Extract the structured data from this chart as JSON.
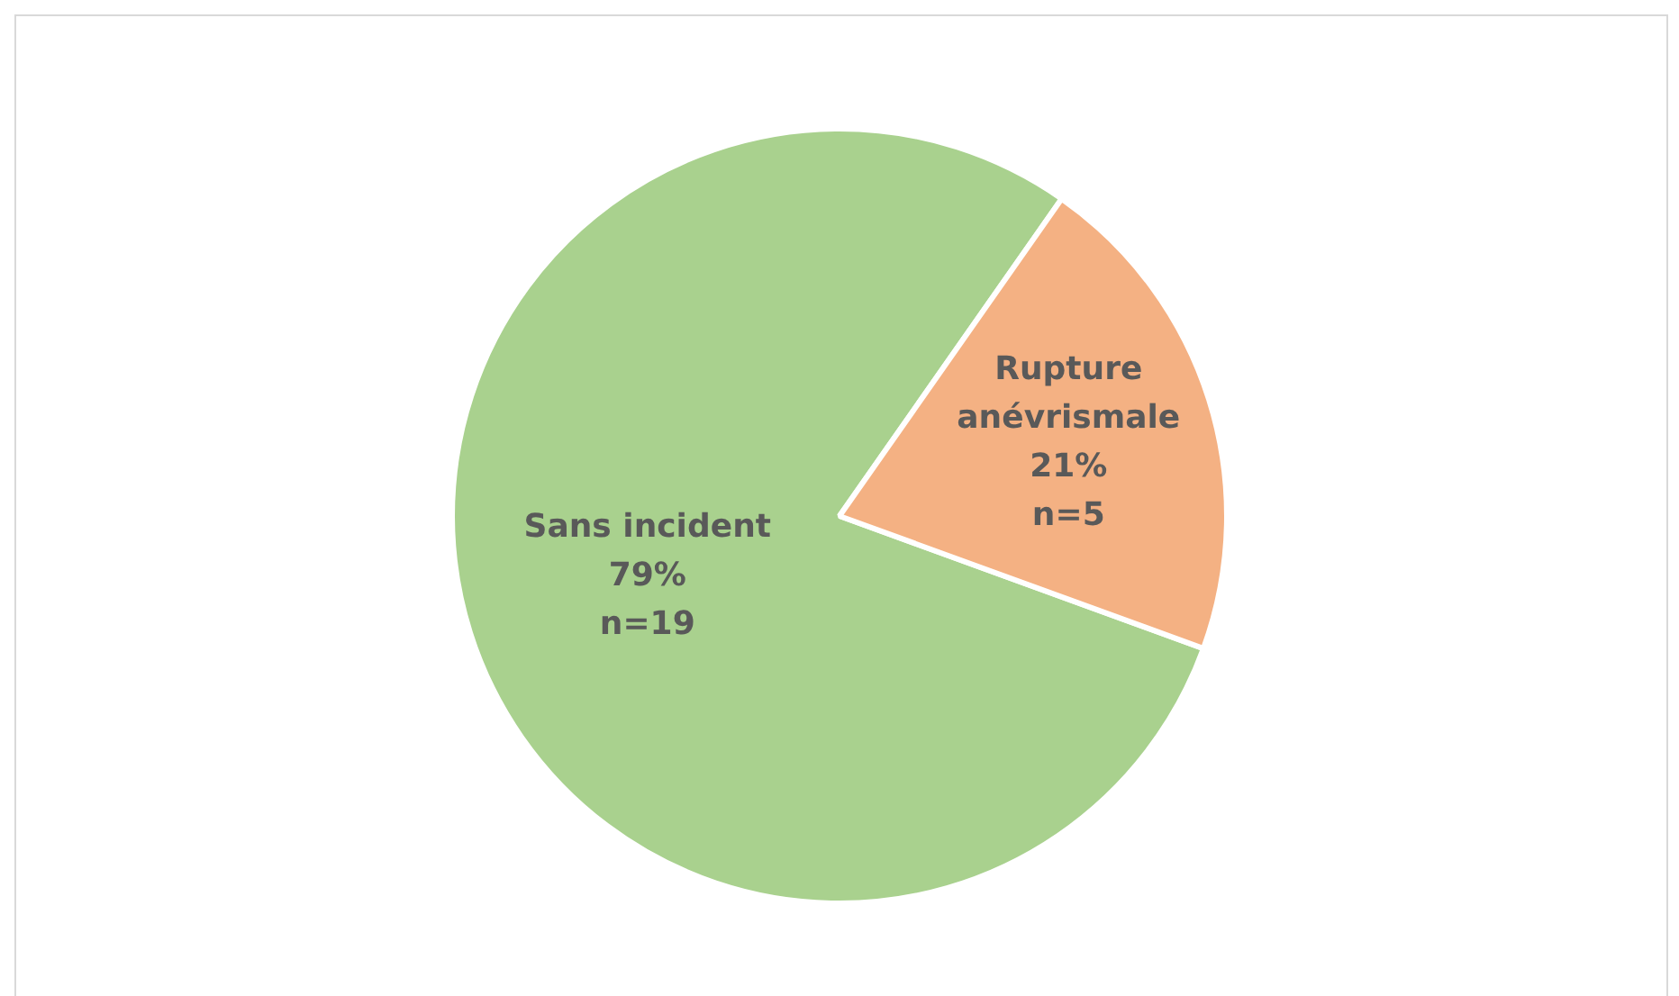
{
  "chart_data": {
    "type": "pie",
    "categories": [
      "Sans incident",
      "Rupture anévrismale"
    ],
    "values": [
      19,
      5
    ],
    "value_labels": [
      "79%\nn=19",
      "21%\nn=5"
    ],
    "colors": [
      "#a9d18e",
      "#f4b183"
    ],
    "legend": false
  }
}
